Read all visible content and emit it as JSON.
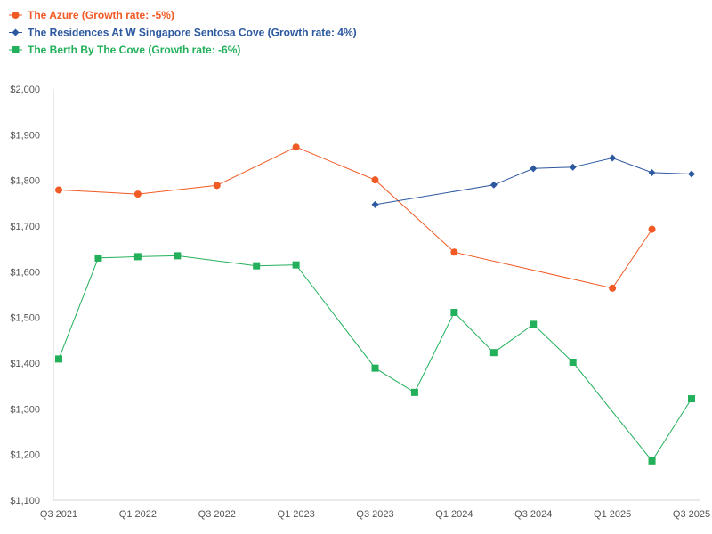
{
  "chart_data": {
    "type": "line",
    "title": "",
    "xlabel": "",
    "ylabel": "",
    "ylim": [
      1100,
      2000
    ],
    "y_ticks": [
      1100,
      1200,
      1300,
      1400,
      1500,
      1600,
      1700,
      1800,
      1900,
      2000
    ],
    "y_tick_labels": [
      "$1,100",
      "$1,200",
      "$1,300",
      "$1,400",
      "$1,500",
      "$1,600",
      "$1,700",
      "$1,800",
      "$1,900",
      "$2,000"
    ],
    "x_ticks": [
      {
        "index": 0,
        "label": "Q3 2021"
      },
      {
        "index": 2,
        "label": "Q1 2022"
      },
      {
        "index": 4,
        "label": "Q3 2022"
      },
      {
        "index": 6,
        "label": "Q1 2023"
      },
      {
        "index": 8,
        "label": "Q3 2023"
      },
      {
        "index": 10,
        "label": "Q1 2024"
      },
      {
        "index": 12,
        "label": "Q3 2024"
      },
      {
        "index": 14,
        "label": "Q1 2025"
      },
      {
        "index": 16,
        "label": "Q3 2025"
      }
    ],
    "x_range": [
      0,
      16
    ],
    "legend_position": "top-left",
    "series": [
      {
        "name": "The Azure (Growth rate: -5%)",
        "color": "#f15a24",
        "marker": "circle",
        "points": [
          {
            "x": 0,
            "y": 1779
          },
          {
            "x": 2,
            "y": 1770
          },
          {
            "x": 4,
            "y": 1789
          },
          {
            "x": 6,
            "y": 1873
          },
          {
            "x": 8,
            "y": 1801
          },
          {
            "x": 10,
            "y": 1643
          },
          {
            "x": 14,
            "y": 1564
          },
          {
            "x": 15,
            "y": 1693
          }
        ]
      },
      {
        "name": "The Residences At W Singapore Sentosa Cove (Growth rate: 4%)",
        "color": "#2c58a0",
        "marker": "diamond",
        "points": [
          {
            "x": 8,
            "y": 1747
          },
          {
            "x": 11,
            "y": 1790
          },
          {
            "x": 12,
            "y": 1826
          },
          {
            "x": 13,
            "y": 1829
          },
          {
            "x": 14,
            "y": 1849
          },
          {
            "x": 15,
            "y": 1817
          },
          {
            "x": 16,
            "y": 1814
          }
        ]
      },
      {
        "name": "The Berth By The Cove (Growth rate: -6%)",
        "color": "#22b05b",
        "marker": "square",
        "points": [
          {
            "x": 0,
            "y": 1409
          },
          {
            "x": 1,
            "y": 1630
          },
          {
            "x": 2,
            "y": 1633
          },
          {
            "x": 3,
            "y": 1635
          },
          {
            "x": 5,
            "y": 1613
          },
          {
            "x": 6,
            "y": 1615
          },
          {
            "x": 8,
            "y": 1389
          },
          {
            "x": 9,
            "y": 1336
          },
          {
            "x": 10,
            "y": 1511
          },
          {
            "x": 11,
            "y": 1423
          },
          {
            "x": 12,
            "y": 1485
          },
          {
            "x": 13,
            "y": 1402
          },
          {
            "x": 15,
            "y": 1186
          },
          {
            "x": 16,
            "y": 1322
          }
        ]
      }
    ]
  }
}
